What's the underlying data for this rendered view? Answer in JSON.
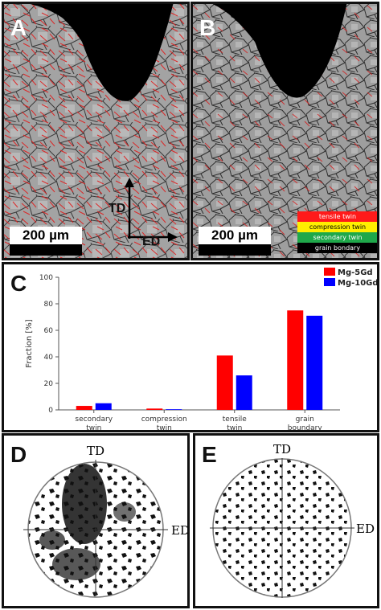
{
  "panels": {
    "a": {
      "letter": "A",
      "scale_label": "200 µm",
      "td_label": "TD",
      "ed_label": "ED"
    },
    "b": {
      "letter": "B",
      "scale_label": "200 µm",
      "legend": [
        {
          "label": "tensile twin",
          "color": "#ff1a1a"
        },
        {
          "label": "compression twin",
          "color": "#ffee00"
        },
        {
          "label": "secondary twin",
          "color": "#1fa84a"
        },
        {
          "label": "grain bondary",
          "color": "#000000"
        }
      ]
    },
    "c": {
      "letter": "C"
    },
    "d": {
      "letter": "D",
      "td_label": "TD",
      "ed_label": "ED"
    },
    "e": {
      "letter": "E",
      "td_label": "TD",
      "ed_label": "ED"
    }
  },
  "chart_data": {
    "type": "bar",
    "categories": [
      "secondary twin",
      "compression twin",
      "tensile twin",
      "grain boundary"
    ],
    "category_lines": [
      [
        "secondary",
        "twin"
      ],
      [
        "compression",
        "twin"
      ],
      [
        "tensile",
        "twin"
      ],
      [
        "grain",
        "boundary"
      ]
    ],
    "series": [
      {
        "name": "Mg-5Gd",
        "color": "#ff0000",
        "values": [
          3,
          1,
          41,
          75
        ]
      },
      {
        "name": "Mg-10Gd",
        "color": "#0000ff",
        "values": [
          5,
          0.5,
          26,
          71
        ]
      }
    ],
    "ylabel": "Fraction [%]",
    "ylim": [
      0,
      100
    ],
    "yticks": [
      0,
      20,
      40,
      60,
      80,
      100
    ],
    "legend_position": "top-right"
  }
}
